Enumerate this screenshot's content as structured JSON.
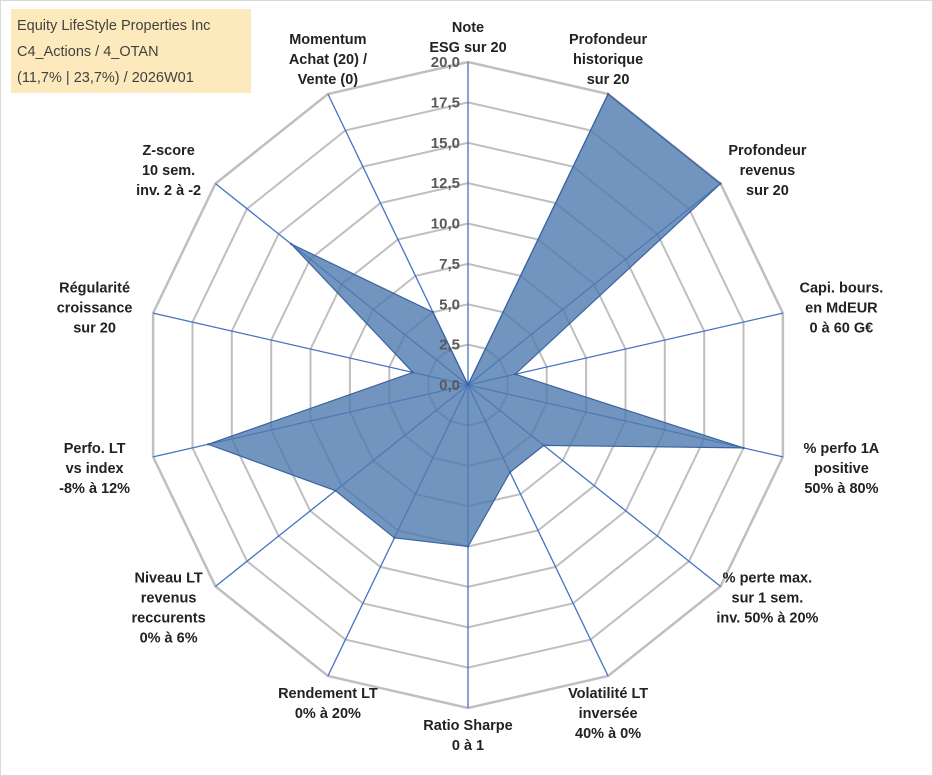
{
  "chart_data": {
    "type": "radar",
    "title_lines": [
      "Equity LifeStyle Properties Inc",
      "C4_Actions / 4_OTAN",
      "(11,7% | 23,7%) / 2026W01"
    ],
    "r_min": 0,
    "r_max": 20,
    "ticks": [
      "0,0",
      "2,5",
      "5,0",
      "7,5",
      "10,0",
      "12,5",
      "15,0",
      "17,5",
      "20,0"
    ],
    "tick_values": [
      0,
      2.5,
      5,
      7.5,
      10,
      12.5,
      15,
      17.5,
      20
    ],
    "grid_values": [
      2.5,
      5,
      7.5,
      10,
      12.5,
      15,
      17.5,
      20
    ],
    "axes": [
      {
        "lines": [
          "Note",
          "ESG sur 20"
        ]
      },
      {
        "lines": [
          "Profondeur",
          "historique",
          "sur 20"
        ]
      },
      {
        "lines": [
          "Profondeur",
          "revenus",
          "sur 20"
        ]
      },
      {
        "lines": [
          "Capi. bours.",
          "en MdEUR",
          "0 à 60 G€"
        ]
      },
      {
        "lines": [
          "% perfo 1A",
          "positive",
          "50% à 80%"
        ]
      },
      {
        "lines": [
          "% perte max.",
          "sur 1 sem.",
          "inv. 50% à 20%"
        ]
      },
      {
        "lines": [
          "Volatilité LT",
          "inversée",
          "40% à 0%"
        ]
      },
      {
        "lines": [
          "Ratio Sharpe",
          "0 à 1"
        ]
      },
      {
        "lines": [
          "Rendement LT",
          "0% à 20%"
        ]
      },
      {
        "lines": [
          "Niveau LT",
          "revenus",
          "reccurents",
          "0% à 6%"
        ]
      },
      {
        "lines": [
          "Perfo. LT",
          "vs index",
          "-8% à 12%"
        ]
      },
      {
        "lines": [
          "Régularité",
          "croissance",
          "sur 20"
        ]
      },
      {
        "lines": [
          "Z-score",
          "10 sem.",
          "inv. 2 à -2"
        ]
      },
      {
        "lines": [
          "Momentum",
          "Achat (20) /",
          "Vente (0)"
        ]
      }
    ],
    "series": [
      {
        "name": "Equity LifeStyle Properties Inc",
        "values": [
          0,
          20,
          20,
          3,
          17.5,
          6,
          6,
          10,
          10.5,
          10.5,
          16.5,
          3.5,
          14,
          5
        ]
      }
    ],
    "colors": {
      "fill": "#4f7bb0",
      "stroke": "#3a64a0",
      "spoke": "#4472c4",
      "grid": "#bfbfbf",
      "title_bg": "#fde9b8"
    }
  }
}
